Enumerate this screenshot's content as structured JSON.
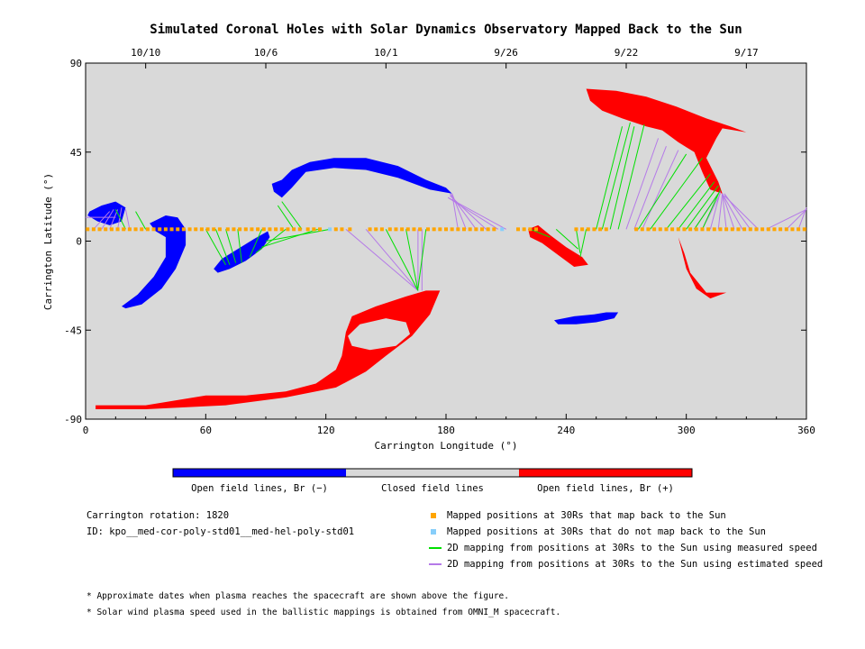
{
  "chart_data": {
    "type": "scatter",
    "title": "Simulated Coronal Holes with Solar Dynamics Observatory Mapped Back to the Sun",
    "xlabel": "Carrington Longitude (°)",
    "ylabel": "Carrington Latitude (°)",
    "xlim": [
      0,
      360
    ],
    "ylim": [
      -90,
      90
    ],
    "xticks": [
      "0",
      "60",
      "120",
      "180",
      "240",
      "300",
      "360"
    ],
    "yticks": [
      "90",
      "45",
      "0",
      "-45",
      "-90"
    ],
    "top_axis_dates": [
      {
        "label": "10/10",
        "lon": 30
      },
      {
        "label": "10/6",
        "lon": 90
      },
      {
        "label": "10/1",
        "lon": 150
      },
      {
        "label": "9/26",
        "lon": 210
      },
      {
        "label": "9/22",
        "lon": 270
      },
      {
        "label": "9/17",
        "lon": 330
      }
    ],
    "colorbar": {
      "labels": [
        "Open field lines, Br (−)",
        "Closed field lines",
        "Open field lines, Br (+)"
      ],
      "colors": [
        "#0000ff",
        "#d9d9d9",
        "#ff0000"
      ]
    },
    "colors": {
      "background": "#d9d9d9",
      "negative_hole": "#0000ff",
      "positive_hole": "#ff0000",
      "mapped": "#ffa500",
      "not_mapped": "#87cefa",
      "measured": "#00e000",
      "estimated": "#b57ae8"
    },
    "spacecraft_latitude": 6,
    "mapped_points_lon": [
      1,
      4,
      7,
      10,
      13,
      16,
      19,
      22,
      25,
      28,
      31,
      34,
      37,
      40,
      43,
      46,
      49,
      52,
      55,
      58,
      61,
      64,
      67,
      71,
      74,
      77,
      80,
      83,
      86,
      89,
      92,
      95,
      98,
      101,
      104,
      107,
      111,
      114,
      117,
      125,
      128,
      132,
      142,
      145,
      148,
      152,
      155,
      158,
      161,
      164,
      167,
      171,
      174,
      177,
      180,
      183,
      186,
      189,
      192,
      195,
      198,
      201,
      204,
      216,
      219,
      222,
      225,
      245,
      248,
      251,
      254,
      257,
      260,
      275,
      278,
      281,
      284,
      287,
      290,
      293,
      296,
      299,
      302,
      305,
      308,
      311,
      314,
      317,
      320,
      323,
      326,
      329,
      332,
      335,
      338,
      341,
      344,
      347,
      350,
      353,
      356,
      359
    ],
    "not_mapped_points_lon": [
      122,
      208
    ],
    "coronal_holes": [
      {
        "polarity": "-",
        "outline": [
          [
            2,
            15
          ],
          [
            8,
            18
          ],
          [
            15,
            20
          ],
          [
            20,
            17
          ],
          [
            18,
            10
          ],
          [
            12,
            8
          ],
          [
            6,
            10
          ],
          [
            1,
            13
          ]
        ]
      },
      {
        "polarity": "-",
        "outline": [
          [
            20,
            -34
          ],
          [
            28,
            -32
          ],
          [
            38,
            -24
          ],
          [
            45,
            -14
          ],
          [
            50,
            -2
          ],
          [
            50,
            6
          ],
          [
            46,
            12
          ],
          [
            40,
            13
          ],
          [
            32,
            9
          ],
          [
            35,
            5
          ],
          [
            40,
            2
          ],
          [
            40,
            -8
          ],
          [
            34,
            -18
          ],
          [
            26,
            -27
          ],
          [
            18,
            -33
          ]
        ]
      },
      {
        "polarity": "-",
        "outline": [
          [
            66,
            -16
          ],
          [
            72,
            -14
          ],
          [
            80,
            -10
          ],
          [
            88,
            -4
          ],
          [
            92,
            2
          ],
          [
            91,
            5
          ],
          [
            84,
            1
          ],
          [
            76,
            -4
          ],
          [
            68,
            -9
          ],
          [
            64,
            -14
          ]
        ]
      },
      {
        "polarity": "-",
        "outline": [
          [
            93,
            29
          ],
          [
            98,
            31
          ],
          [
            103,
            36
          ],
          [
            112,
            40
          ],
          [
            124,
            42
          ],
          [
            140,
            42
          ],
          [
            156,
            38
          ],
          [
            170,
            31
          ],
          [
            180,
            27
          ],
          [
            183,
            24
          ],
          [
            172,
            26
          ],
          [
            156,
            32
          ],
          [
            140,
            36
          ],
          [
            124,
            37
          ],
          [
            110,
            35
          ],
          [
            103,
            27
          ],
          [
            98,
            22
          ],
          [
            94,
            25
          ]
        ]
      },
      {
        "polarity": "-",
        "outline": [
          [
            234,
            -40
          ],
          [
            244,
            -38
          ],
          [
            254,
            -37
          ],
          [
            260,
            -36
          ],
          [
            266,
            -36
          ],
          [
            264,
            -39
          ],
          [
            255,
            -41
          ],
          [
            245,
            -42
          ],
          [
            236,
            -42
          ]
        ]
      },
      {
        "polarity": "+",
        "outline": [
          [
            5,
            -83
          ],
          [
            30,
            -83
          ],
          [
            60,
            -78
          ],
          [
            80,
            -78
          ],
          [
            100,
            -76
          ],
          [
            115,
            -72
          ],
          [
            125,
            -65
          ],
          [
            128,
            -58
          ],
          [
            130,
            -46
          ],
          [
            133,
            -38
          ],
          [
            145,
            -33
          ],
          [
            160,
            -28
          ],
          [
            170,
            -25
          ],
          [
            177,
            -25
          ],
          [
            172,
            -37
          ],
          [
            163,
            -48
          ],
          [
            150,
            -58
          ],
          [
            140,
            -66
          ],
          [
            125,
            -74
          ],
          [
            100,
            -79
          ],
          [
            70,
            -83
          ],
          [
            30,
            -85
          ],
          [
            5,
            -85
          ]
        ]
      },
      {
        "polarity": "+",
        "outline": [
          [
            221,
            6
          ],
          [
            226,
            8
          ],
          [
            232,
            3
          ],
          [
            240,
            -3
          ],
          [
            248,
            -8
          ],
          [
            251,
            -12
          ],
          [
            244,
            -13
          ],
          [
            236,
            -7
          ],
          [
            228,
            -1
          ],
          [
            222,
            2
          ]
        ]
      },
      {
        "polarity": "+",
        "outline": [
          [
            250,
            77
          ],
          [
            265,
            76
          ],
          [
            280,
            73
          ],
          [
            295,
            68
          ],
          [
            310,
            62
          ],
          [
            322,
            58
          ],
          [
            330,
            55
          ],
          [
            318,
            57
          ],
          [
            315,
            52
          ],
          [
            310,
            42
          ],
          [
            316,
            30
          ],
          [
            318,
            24
          ],
          [
            312,
            26
          ],
          [
            308,
            35
          ],
          [
            304,
            45
          ],
          [
            296,
            50
          ],
          [
            288,
            56
          ],
          [
            280,
            58
          ],
          [
            268,
            62
          ],
          [
            258,
            66
          ],
          [
            252,
            71
          ]
        ]
      },
      {
        "polarity": "+",
        "outline": [
          [
            296,
            2
          ],
          [
            300,
            -14
          ],
          [
            305,
            -24
          ],
          [
            312,
            -29
          ],
          [
            320,
            -26
          ],
          [
            310,
            -26
          ],
          [
            302,
            -16
          ],
          [
            299,
            -6
          ]
        ]
      }
    ],
    "measured_mappings": [
      [
        [
          20,
          6
        ],
        [
          15,
          16
        ]
      ],
      [
        [
          30,
          6
        ],
        [
          25,
          15
        ]
      ],
      [
        [
          60,
          6
        ],
        [
          70,
          -12
        ]
      ],
      [
        [
          65,
          6
        ],
        [
          72,
          -12
        ]
      ],
      [
        [
          70,
          6
        ],
        [
          75,
          -11
        ]
      ],
      [
        [
          76,
          6
        ],
        [
          78,
          -11
        ]
      ],
      [
        [
          88,
          6
        ],
        [
          82,
          -8
        ]
      ],
      [
        [
          100,
          6
        ],
        [
          85,
          -6
        ]
      ],
      [
        [
          104,
          6
        ],
        [
          96,
          18
        ]
      ],
      [
        [
          108,
          6
        ],
        [
          98,
          20
        ]
      ],
      [
        [
          116,
          6
        ],
        [
          88,
          -3
        ]
      ],
      [
        [
          122,
          6
        ],
        [
          90,
          0
        ]
      ],
      [
        [
          150,
          6
        ],
        [
          166,
          -25
        ]
      ],
      [
        [
          160,
          6
        ],
        [
          166,
          -25
        ]
      ],
      [
        [
          170,
          6
        ],
        [
          166,
          -24
        ]
      ],
      [
        [
          222,
          6
        ],
        [
          232,
          2
        ]
      ],
      [
        [
          235,
          6
        ],
        [
          246,
          -4
        ]
      ],
      [
        [
          245,
          6
        ],
        [
          247,
          -6
        ]
      ],
      [
        [
          250,
          6
        ],
        [
          247,
          -8
        ]
      ],
      [
        [
          255,
          6
        ],
        [
          268,
          58
        ]
      ],
      [
        [
          258,
          6
        ],
        [
          272,
          60
        ]
      ],
      [
        [
          262,
          6
        ],
        [
          274,
          58
        ]
      ],
      [
        [
          266,
          6
        ],
        [
          279,
          59
        ]
      ],
      [
        [
          276,
          6
        ],
        [
          300,
          44
        ]
      ],
      [
        [
          282,
          6
        ],
        [
          308,
          42
        ]
      ],
      [
        [
          290,
          6
        ],
        [
          312,
          34
        ]
      ],
      [
        [
          296,
          6
        ],
        [
          314,
          30
        ]
      ],
      [
        [
          300,
          6
        ],
        [
          316,
          28
        ]
      ],
      [
        [
          304,
          6
        ],
        [
          316,
          24
        ]
      ],
      [
        [
          308,
          6
        ],
        [
          317,
          26
        ]
      ]
    ],
    "estimated_mappings": [
      [
        [
          0,
          12
        ],
        [
          15,
          12
        ]
      ],
      [
        [
          4,
          6
        ],
        [
          12,
          15
        ]
      ],
      [
        [
          8,
          6
        ],
        [
          14,
          16
        ]
      ],
      [
        [
          12,
          6
        ],
        [
          16,
          16
        ]
      ],
      [
        [
          16,
          6
        ],
        [
          18,
          17
        ]
      ],
      [
        [
          22,
          6
        ],
        [
          20,
          16
        ]
      ],
      [
        [
          130,
          6
        ],
        [
          166,
          -25
        ]
      ],
      [
        [
          140,
          6
        ],
        [
          166,
          -25
        ]
      ],
      [
        [
          166,
          6
        ],
        [
          166,
          -25
        ]
      ],
      [
        [
          168,
          6
        ],
        [
          168,
          -25
        ]
      ],
      [
        [
          186,
          6
        ],
        [
          183,
          24
        ]
      ],
      [
        [
          190,
          6
        ],
        [
          183,
          24
        ]
      ],
      [
        [
          195,
          6
        ],
        [
          182,
          24
        ]
      ],
      [
        [
          200,
          6
        ],
        [
          182,
          23
        ]
      ],
      [
        [
          206,
          6
        ],
        [
          181,
          22
        ]
      ],
      [
        [
          210,
          6
        ],
        [
          181,
          22
        ]
      ],
      [
        [
          270,
          6
        ],
        [
          286,
          52
        ]
      ],
      [
        [
          274,
          6
        ],
        [
          290,
          48
        ]
      ],
      [
        [
          278,
          6
        ],
        [
          296,
          46
        ]
      ],
      [
        [
          304,
          6
        ],
        [
          316,
          24
        ]
      ],
      [
        [
          308,
          6
        ],
        [
          317,
          24
        ]
      ],
      [
        [
          312,
          6
        ],
        [
          317,
          25
        ]
      ],
      [
        [
          316,
          6
        ],
        [
          318,
          24
        ]
      ],
      [
        [
          320,
          6
        ],
        [
          318,
          24
        ]
      ],
      [
        [
          324,
          6
        ],
        [
          318,
          24
        ]
      ],
      [
        [
          328,
          6
        ],
        [
          318,
          24
        ]
      ],
      [
        [
          332,
          6
        ],
        [
          319,
          24
        ]
      ],
      [
        [
          336,
          6
        ],
        [
          319,
          23
        ]
      ],
      [
        [
          340,
          6
        ],
        [
          360,
          16
        ]
      ],
      [
        [
          350,
          6
        ],
        [
          360,
          16
        ]
      ],
      [
        [
          356,
          6
        ],
        [
          360,
          17
        ]
      ]
    ]
  },
  "info": {
    "rotation": "Carrington rotation: 1820",
    "id": "ID: kpo__med-cor-poly-std01__med-hel-poly-std01"
  },
  "legend": [
    {
      "label": "Mapped positions at 30Rs that map back to the Sun",
      "color": "#ffa500",
      "kind": "square"
    },
    {
      "label": "Mapped positions at 30Rs that do not map back to the Sun",
      "color": "#87cefa",
      "kind": "square"
    },
    {
      "label": "2D mapping from positions at 30Rs to the Sun using measured speed",
      "color": "#00e000",
      "kind": "line"
    },
    {
      "label": "2D mapping from positions at 30Rs to the Sun using estimated speed",
      "color": "#b57ae8",
      "kind": "line"
    }
  ],
  "footnotes": [
    "* Approximate dates when plasma reaches the spacecraft are shown above the figure.",
    "* Solar wind plasma speed used in the ballistic mappings is obtained from OMNI_M spacecraft."
  ]
}
